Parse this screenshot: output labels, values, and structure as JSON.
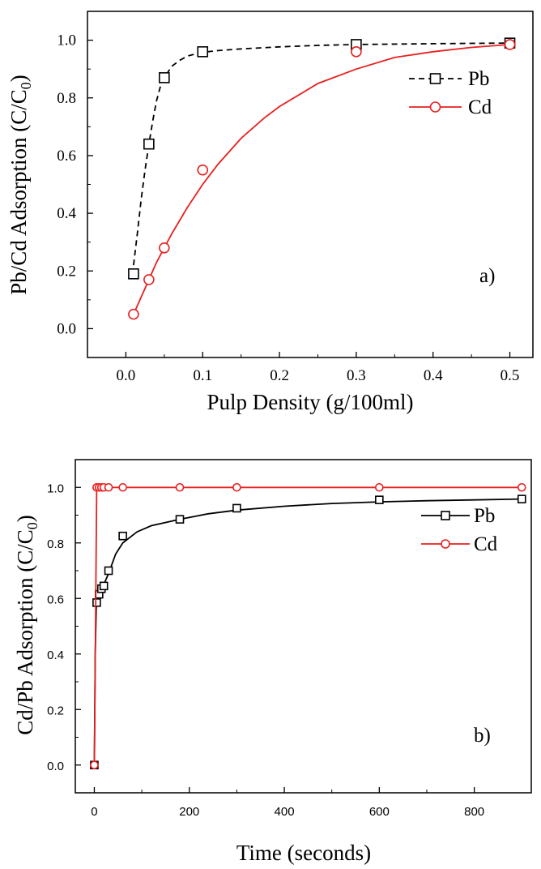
{
  "chart_data": [
    {
      "type": "scatter",
      "panel_label": "a)",
      "xlabel": "Pulp Density (g/100ml)",
      "ylabel": "Pb/Cd Adsorption (C/C",
      "ylabel_sub": "0",
      "ylabel_close": ")",
      "xlim": [
        -0.05,
        0.53
      ],
      "ylim": [
        -0.1,
        1.1
      ],
      "xticks": [
        "0.0",
        "0.1",
        "0.2",
        "0.3",
        "0.4",
        "0.5"
      ],
      "xtick_values": [
        0.0,
        0.1,
        0.2,
        0.3,
        0.4,
        0.5
      ],
      "yticks": [
        "0.0",
        "0.2",
        "0.4",
        "0.6",
        "0.8",
        "1.0"
      ],
      "ytick_values": [
        0.0,
        0.2,
        0.4,
        0.6,
        0.8,
        1.0
      ],
      "legend_position": "right",
      "series": [
        {
          "name": "Pb",
          "color": "#000000",
          "marker": "square",
          "line": "dashed",
          "x": [
            0.01,
            0.03,
            0.05,
            0.1,
            0.3,
            0.5
          ],
          "y": [
            0.19,
            0.64,
            0.87,
            0.96,
            0.985,
            0.99
          ],
          "fit_x": [
            0.01,
            0.015,
            0.02,
            0.025,
            0.03,
            0.035,
            0.04,
            0.045,
            0.05,
            0.06,
            0.07,
            0.08,
            0.09,
            0.1,
            0.12,
            0.15,
            0.2,
            0.25,
            0.3,
            0.4,
            0.5
          ],
          "fit_y": [
            0.22,
            0.33,
            0.45,
            0.55,
            0.64,
            0.72,
            0.79,
            0.84,
            0.87,
            0.91,
            0.93,
            0.945,
            0.952,
            0.958,
            0.964,
            0.97,
            0.977,
            0.982,
            0.985,
            0.988,
            0.99
          ]
        },
        {
          "name": "Cd",
          "color": "#e8201f",
          "marker": "circle",
          "line": "solid",
          "x": [
            0.01,
            0.03,
            0.05,
            0.1,
            0.3,
            0.5
          ],
          "y": [
            0.05,
            0.17,
            0.28,
            0.55,
            0.96,
            0.985
          ],
          "fit_x": [
            0.01,
            0.02,
            0.03,
            0.04,
            0.05,
            0.06,
            0.08,
            0.1,
            0.12,
            0.15,
            0.18,
            0.2,
            0.25,
            0.3,
            0.35,
            0.4,
            0.45,
            0.5
          ],
          "fit_y": [
            0.05,
            0.11,
            0.17,
            0.23,
            0.28,
            0.33,
            0.42,
            0.5,
            0.57,
            0.66,
            0.73,
            0.77,
            0.85,
            0.9,
            0.94,
            0.96,
            0.975,
            0.985
          ]
        }
      ]
    },
    {
      "type": "line",
      "panel_label": "b)",
      "xlabel": "Time (seconds)",
      "ylabel": "Cd/Pb Adsorption (C/C",
      "ylabel_sub": "0",
      "ylabel_close": ")",
      "xlim": [
        -40,
        920
      ],
      "ylim": [
        -0.1,
        1.1
      ],
      "xticks": [
        "0",
        "200",
        "400",
        "600",
        "800"
      ],
      "xtick_values": [
        0,
        200,
        400,
        600,
        800
      ],
      "yticks": [
        "0.0",
        "0.2",
        "0.4",
        "0.6",
        "0.8",
        "1.0"
      ],
      "ytick_values": [
        0.0,
        0.2,
        0.4,
        0.6,
        0.8,
        1.0
      ],
      "legend_position": "right",
      "series": [
        {
          "name": "Pb",
          "color": "#000000",
          "marker": "square",
          "line": "solid",
          "x": [
            0,
            5,
            10,
            15,
            20,
            30,
            60,
            180,
            300,
            600,
            900
          ],
          "y": [
            0.0,
            0.585,
            0.615,
            0.635,
            0.645,
            0.7,
            0.825,
            0.885,
            0.925,
            0.955,
            0.958
          ],
          "fit_x": [
            0,
            2,
            4,
            5,
            10,
            15,
            20,
            30,
            45,
            60,
            90,
            120,
            180,
            240,
            300,
            400,
            500,
            600,
            700,
            800,
            900
          ],
          "fit_y": [
            0.0,
            0.4,
            0.56,
            0.585,
            0.615,
            0.635,
            0.65,
            0.69,
            0.76,
            0.8,
            0.84,
            0.862,
            0.885,
            0.905,
            0.918,
            0.932,
            0.942,
            0.948,
            0.952,
            0.955,
            0.958
          ]
        },
        {
          "name": "Cd",
          "color": "#e8201f",
          "marker": "circle",
          "line": "solid",
          "x": [
            0,
            5,
            10,
            15,
            20,
            30,
            60,
            180,
            300,
            600,
            900
          ],
          "y": [
            0.0,
            1.0,
            1.0,
            1.0,
            1.0,
            1.0,
            1.0,
            1.0,
            1.0,
            1.0,
            1.0
          ],
          "fit_x": [
            0,
            5,
            10,
            15,
            20,
            30,
            60,
            180,
            300,
            600,
            900
          ],
          "fit_y": [
            0.0,
            1.0,
            1.0,
            1.0,
            1.0,
            1.0,
            1.0,
            1.0,
            1.0,
            1.0,
            1.0
          ]
        }
      ]
    }
  ]
}
